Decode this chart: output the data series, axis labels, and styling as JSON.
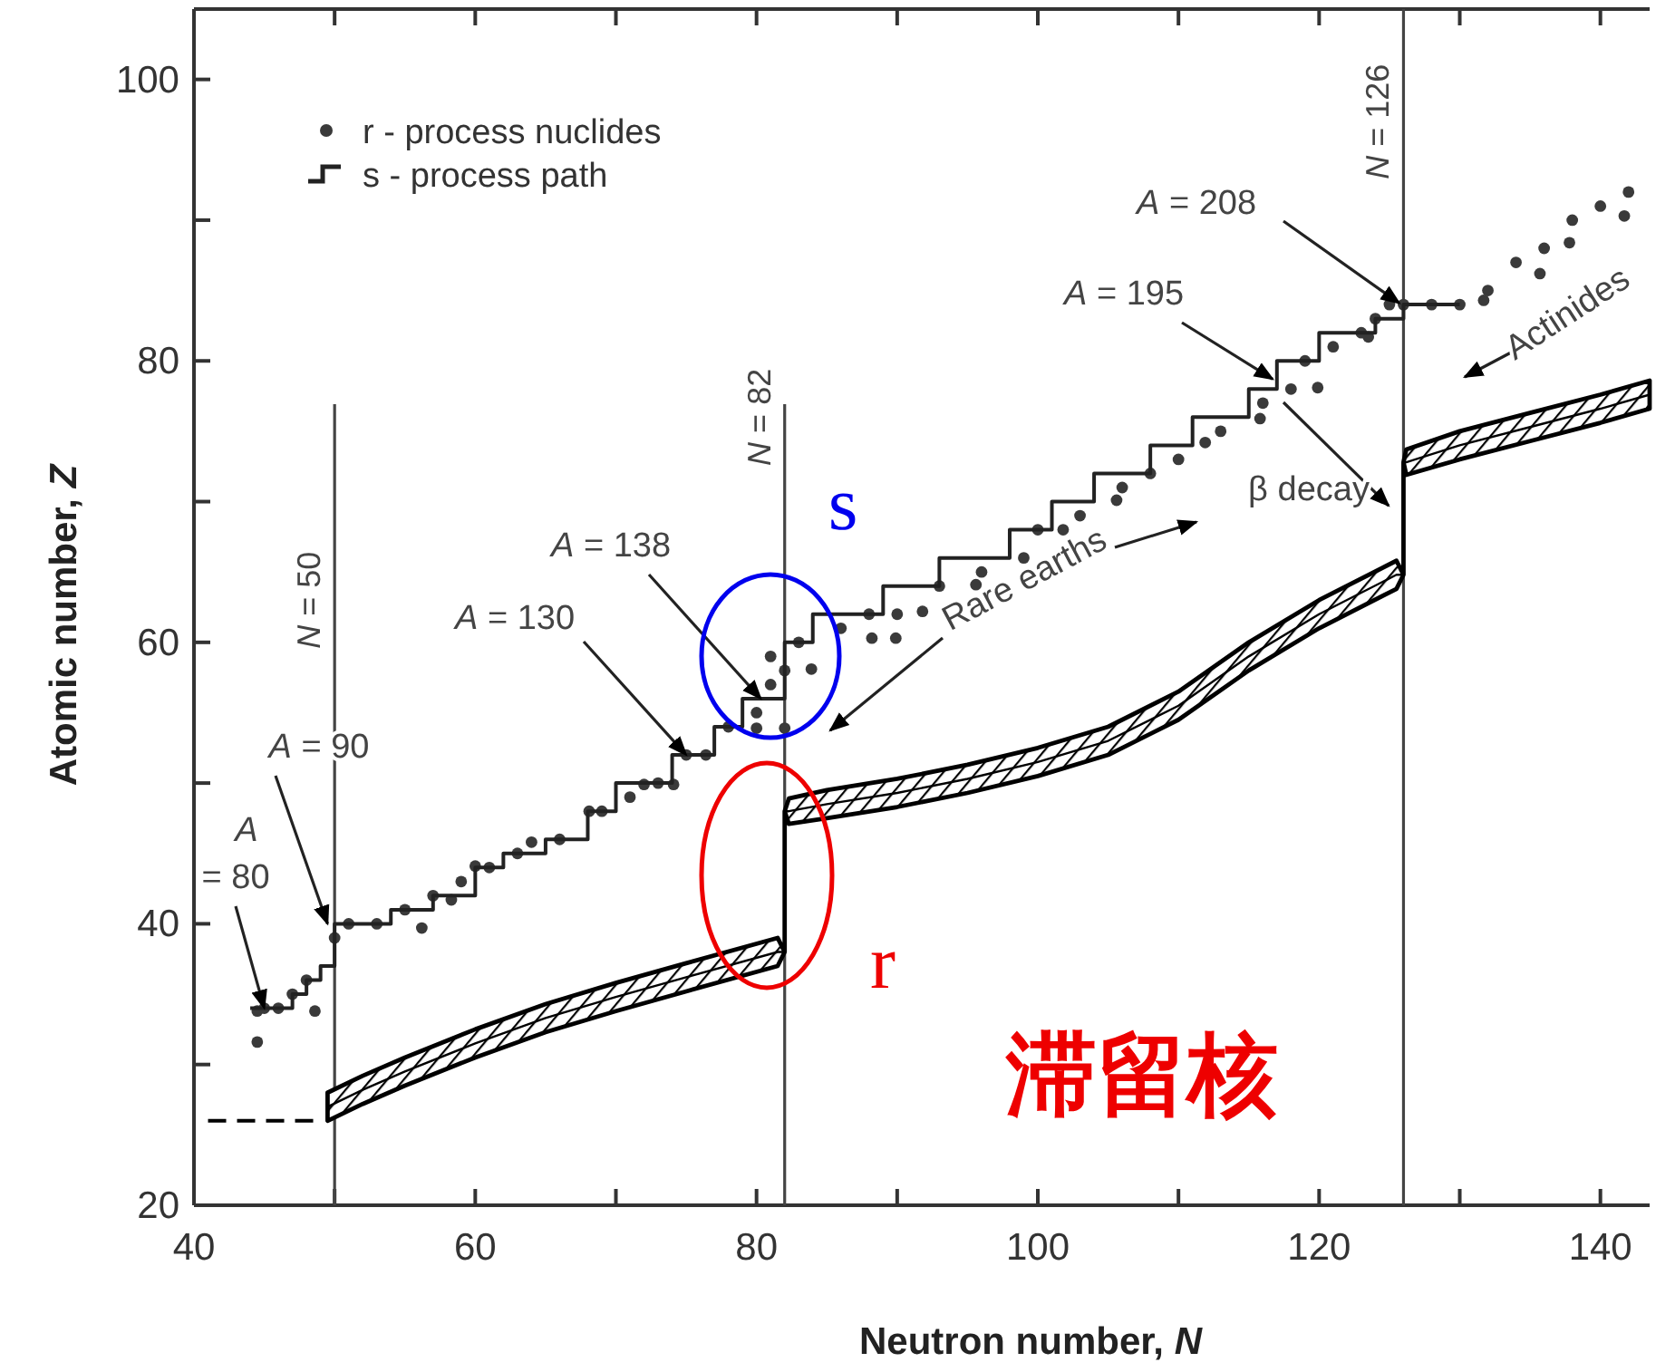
{
  "chart_data": {
    "type": "scatter",
    "xlabel": "Neutron number, *N*",
    "ylabel": "Atomic number, *Z*",
    "xlim": [
      40,
      143.5
    ],
    "ylim": [
      20,
      105
    ],
    "xticks": [
      40,
      {
        "value": 50,
        "label": null
      },
      60,
      {
        "value": 70,
        "label": null
      },
      80,
      {
        "value": 90,
        "label": null
      },
      100,
      {
        "value": 110,
        "label": null
      },
      120,
      {
        "value": 130,
        "label": null
      },
      140
    ],
    "yticks": [
      20,
      {
        "value": 30,
        "label": null
      },
      40,
      {
        "value": 50,
        "label": null
      },
      60,
      {
        "value": 70,
        "label": null
      },
      80,
      {
        "value": 90,
        "label": null
      },
      100
    ],
    "grid": false,
    "legend": "top left",
    "series": [
      {
        "name": "r - process nuclides",
        "marker": "circle",
        "color": "#3a3a3a",
        "x": [
          44.5,
          48.6,
          44.5,
          56.2,
          58.3,
          60,
          64,
          68.1,
          72,
          74.1,
          76.4,
          83.9,
          82,
          80,
          88.2,
          89.9,
          91.8,
          95.6,
          101.8,
          105.6,
          111.9,
          115.8,
          119.9,
          123.5,
          131.7,
          135.7,
          137.8,
          141.7,
          45,
          46,
          47,
          48,
          50,
          51,
          53,
          55,
          57,
          59,
          61,
          63,
          66,
          69,
          71,
          73,
          75,
          78,
          80,
          81,
          81,
          82,
          83,
          86,
          88,
          90,
          93,
          96,
          99,
          100,
          103,
          106,
          108,
          110,
          113,
          116,
          118,
          119,
          121,
          123,
          124,
          125,
          126,
          128,
          130,
          132,
          134,
          136,
          138,
          140,
          142
        ],
        "values": [
          33.8,
          33.8,
          31.6,
          39.7,
          41.7,
          44.1,
          45.8,
          48,
          49.9,
          49.9,
          52,
          58.1,
          53.9,
          53.9,
          60.3,
          60.3,
          62.2,
          64.1,
          68,
          70.1,
          74.2,
          75.9,
          78.1,
          81.7,
          84.3,
          86.2,
          88.4,
          90.3,
          34,
          34,
          35,
          36,
          39,
          40,
          40,
          41,
          42,
          43,
          44,
          45,
          46,
          48,
          49,
          50,
          52,
          54,
          55,
          57,
          59,
          58,
          60,
          61,
          62,
          62,
          64,
          65,
          66,
          68,
          69,
          71,
          72,
          73,
          75,
          77,
          78,
          80,
          81,
          82,
          83,
          84,
          84,
          84,
          84,
          85,
          87,
          88,
          90,
          91,
          92
        ]
      },
      {
        "name": "s - process path",
        "type": "line",
        "color": "#222222",
        "x": [
          44,
          47,
          47,
          48,
          48,
          49,
          49,
          50,
          50,
          54,
          54,
          57,
          57,
          60,
          60,
          62,
          62,
          65,
          65,
          68,
          68,
          70,
          70,
          74,
          74,
          77,
          77,
          79,
          79,
          82,
          82,
          84,
          84,
          89,
          89,
          93,
          93,
          98,
          98,
          101,
          101,
          104,
          104,
          108,
          108,
          111,
          111,
          115,
          115,
          117,
          117,
          120,
          120,
          124,
          124,
          126,
          126,
          130
        ],
        "values": [
          34,
          34,
          35,
          35,
          36,
          36,
          37,
          37,
          40,
          40,
          41,
          41,
          42,
          42,
          44,
          44,
          45,
          45,
          46,
          46,
          48,
          48,
          50,
          50,
          52,
          52,
          54,
          54,
          56,
          56,
          60,
          60,
          62,
          62,
          64,
          64,
          66,
          66,
          68,
          68,
          70,
          70,
          72,
          72,
          74,
          74,
          76,
          76,
          78,
          78,
          80,
          80,
          82,
          82,
          83,
          83,
          84,
          84
        ]
      },
      {
        "type": "line",
        "color": "#000000",
        "x": [
          49.5,
          52,
          55,
          60,
          65,
          70,
          75,
          81.5,
          82,
          82,
          82.3,
          85,
          90,
          95,
          100,
          105,
          110,
          115,
          120,
          125.5,
          126,
          126,
          126.2,
          130,
          135,
          140,
          143.5
        ],
        "values": [
          27,
          28.2,
          29.5,
          31.5,
          33.3,
          34.8,
          36.2,
          38,
          38,
          48,
          48,
          48.5,
          49.3,
          50.3,
          51.5,
          53,
          55.5,
          59,
          62,
          64.8,
          64.8,
          72.8,
          72.8,
          74,
          75.3,
          76.6,
          77.6
        ],
        "lower": [
          26,
          27.2,
          28.5,
          30.5,
          32.3,
          33.8,
          35.2,
          37,
          38,
          48,
          47.1,
          47.5,
          48.3,
          49.3,
          50.5,
          52,
          54.5,
          58,
          61,
          63.8,
          64.8,
          72.8,
          71.9,
          73,
          74.3,
          75.6,
          76.6
        ],
        "upper": [
          28,
          29.2,
          30.5,
          32.5,
          34.3,
          35.8,
          37.2,
          39,
          38,
          48,
          48.9,
          49.5,
          50.3,
          51.3,
          52.5,
          54,
          56.5,
          60,
          63,
          65.8,
          64.8,
          72.8,
          73.7,
          75,
          76.3,
          77.6,
          78.6
        ]
      },
      {
        "type": "line",
        "color": "#000000",
        "line_style": "dashed",
        "x": [
          41,
          49
        ],
        "values": [
          26,
          26
        ]
      }
    ],
    "ref_lines": [
      {
        "axis": "x",
        "value": 50,
        "label": "*N* = 50"
      },
      {
        "axis": "x",
        "value": 82,
        "label": "*N* = 82"
      },
      {
        "axis": "x",
        "value": 126,
        "label": "*N* = 126"
      }
    ],
    "annotations": [
      {
        "text": "*A* = 80",
        "x": 45,
        "y": 34
      },
      {
        "text": "*A* = 90",
        "x": 49.5,
        "y": 40
      },
      {
        "text": "*A* = 130",
        "x": 75,
        "y": 52
      },
      {
        "text": "*A* = 138",
        "x": 80.3,
        "y": 56
      },
      {
        "text": "*A* = 195",
        "x": 116.7,
        "y": 78.7
      },
      {
        "text": "*A* = 208",
        "x": 125.7,
        "y": 84.1
      },
      "Rare earths",
      "β decay",
      "Actinides",
      "s",
      "r",
      "滞留核"
    ]
  }
}
